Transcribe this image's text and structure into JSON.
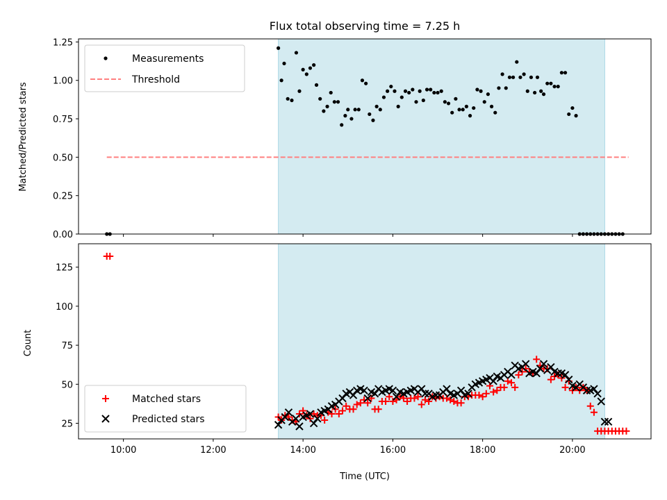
{
  "chart_data": [
    {
      "type": "scatter",
      "title": "Flux total observing time = 7.25 h",
      "xlabel": "",
      "ylabel": "Matched/Predicted stars",
      "xlim": [
        9.0,
        21.75
      ],
      "ylim": [
        0,
        1.27
      ],
      "yticks": [
        0.0,
        0.25,
        0.5,
        0.75,
        1.0,
        1.25
      ],
      "ytick_labels": [
        "0.00",
        "0.25",
        "0.50",
        "0.75",
        "1.00",
        "1.25"
      ],
      "grid": false,
      "legend_position": "upper-left",
      "shaded_region": {
        "x": [
          13.45,
          20.72
        ],
        "color": "#d4ebf1"
      },
      "series": [
        {
          "name": "Measurements",
          "kind": "dot",
          "color": "#000000",
          "x": [
            9.63,
            9.7,
            13.45,
            13.52,
            13.58,
            13.66,
            13.75,
            13.85,
            13.92,
            14.0,
            14.08,
            14.16,
            14.24,
            14.3,
            14.38,
            14.46,
            14.54,
            14.62,
            14.7,
            14.78,
            14.86,
            14.94,
            15.0,
            15.08,
            15.16,
            15.24,
            15.32,
            15.4,
            15.48,
            15.56,
            15.64,
            15.72,
            15.8,
            15.88,
            15.96,
            16.04,
            16.12,
            16.2,
            16.28,
            16.36,
            16.44,
            16.52,
            16.6,
            16.68,
            16.76,
            16.84,
            16.92,
            17.0,
            17.08,
            17.16,
            17.24,
            17.32,
            17.4,
            17.48,
            17.56,
            17.64,
            17.72,
            17.8,
            17.88,
            17.96,
            18.04,
            18.12,
            18.2,
            18.28,
            18.36,
            18.44,
            18.52,
            18.6,
            18.68,
            18.76,
            18.84,
            18.92,
            19.0,
            19.08,
            19.16,
            19.22,
            19.3,
            19.36,
            19.44,
            19.52,
            19.6,
            19.68,
            19.76,
            19.84,
            19.92,
            20.0,
            20.08,
            20.16,
            20.24,
            20.32,
            20.4,
            20.48,
            20.56,
            20.64,
            20.72,
            20.8,
            20.88,
            20.96,
            21.04,
            21.12
          ],
          "y": [
            0.0,
            0.0,
            1.21,
            1.0,
            1.11,
            0.88,
            0.87,
            1.18,
            0.93,
            1.07,
            1.04,
            1.08,
            1.1,
            0.97,
            0.88,
            0.8,
            0.83,
            0.92,
            0.86,
            0.86,
            0.71,
            0.77,
            0.81,
            0.75,
            0.81,
            0.81,
            1.0,
            0.98,
            0.78,
            0.74,
            0.83,
            0.81,
            0.89,
            0.93,
            0.96,
            0.93,
            0.83,
            0.89,
            0.93,
            0.92,
            0.94,
            0.86,
            0.93,
            0.87,
            0.94,
            0.94,
            0.92,
            0.92,
            0.93,
            0.86,
            0.85,
            0.79,
            0.88,
            0.81,
            0.81,
            0.83,
            0.77,
            0.82,
            0.94,
            0.93,
            0.86,
            0.91,
            0.83,
            0.79,
            0.95,
            1.04,
            0.95,
            1.02,
            1.02,
            1.12,
            1.02,
            1.04,
            0.93,
            1.02,
            0.92,
            1.02,
            0.93,
            0.91,
            0.98,
            0.98,
            0.96,
            0.96,
            1.05,
            1.05,
            0.78,
            0.82,
            0.77,
            0.0,
            0.0,
            0.0,
            0.0,
            0.0,
            0.0,
            0.0,
            0.0,
            0.0,
            0.0,
            0.0,
            0.0,
            0.0
          ]
        },
        {
          "name": "Threshold",
          "kind": "dashed-line",
          "color": "#ff7f7f",
          "x": [
            9.63,
            21.25
          ],
          "y": [
            0.5,
            0.5
          ]
        }
      ]
    },
    {
      "type": "scatter",
      "title": "",
      "xlabel": "Time (UTC)",
      "ylabel": "Count",
      "xlim": [
        9.0,
        21.75
      ],
      "ylim": [
        15,
        140
      ],
      "yticks": [
        25,
        50,
        75,
        100,
        125
      ],
      "ytick_labels": [
        "25",
        "50",
        "75",
        "100",
        "125"
      ],
      "xticks": [
        10,
        12,
        14,
        16,
        18,
        20
      ],
      "xtick_labels": [
        "10:00",
        "12:00",
        "14:00",
        "16:00",
        "18:00",
        "20:00"
      ],
      "grid": false,
      "legend_position": "lower-left",
      "shaded_region": {
        "x": [
          13.45,
          20.72
        ],
        "color": "#d4ebf1"
      },
      "series": [
        {
          "name": "Matched stars",
          "marker": "plus",
          "color": "#ff0000",
          "x": [
            9.63,
            9.7,
            13.45,
            13.52,
            13.6,
            13.68,
            13.76,
            13.84,
            13.92,
            14.0,
            14.08,
            14.16,
            14.24,
            14.32,
            14.4,
            14.48,
            14.56,
            14.64,
            14.72,
            14.8,
            14.88,
            14.96,
            15.04,
            15.12,
            15.2,
            15.28,
            15.36,
            15.44,
            15.52,
            15.6,
            15.68,
            15.76,
            15.84,
            15.92,
            16.0,
            16.08,
            16.16,
            16.24,
            16.32,
            16.4,
            16.48,
            16.56,
            16.64,
            16.72,
            16.8,
            16.88,
            16.96,
            17.04,
            17.12,
            17.2,
            17.28,
            17.36,
            17.44,
            17.52,
            17.6,
            17.68,
            17.76,
            17.84,
            17.92,
            18.0,
            18.08,
            18.16,
            18.24,
            18.32,
            18.4,
            18.48,
            18.56,
            18.64,
            18.72,
            18.8,
            18.88,
            18.96,
            19.04,
            19.12,
            19.2,
            19.28,
            19.36,
            19.44,
            19.52,
            19.6,
            19.68,
            19.76,
            19.84,
            19.92,
            20.0,
            20.08,
            20.16,
            20.24,
            20.32,
            20.4,
            20.48,
            20.56,
            20.64,
            20.72,
            20.8,
            20.88,
            20.96,
            21.04,
            21.12,
            21.2
          ],
          "y": [
            132,
            132,
            29,
            27,
            30,
            29,
            27,
            26,
            31,
            33,
            30,
            28,
            31,
            30,
            30,
            27,
            32,
            31,
            34,
            31,
            33,
            36,
            34,
            34,
            37,
            38,
            40,
            38,
            41,
            34,
            34,
            39,
            39,
            42,
            39,
            40,
            42,
            41,
            39,
            41,
            41,
            42,
            37,
            40,
            39,
            42,
            41,
            42,
            41,
            41,
            40,
            39,
            38,
            38,
            42,
            42,
            43,
            43,
            43,
            42,
            44,
            49,
            45,
            46,
            48,
            48,
            52,
            51,
            48,
            56,
            58,
            60,
            58,
            57,
            66,
            62,
            60,
            60,
            53,
            55,
            56,
            54,
            48,
            52,
            46,
            48,
            46,
            48,
            46,
            36,
            32,
            20,
            20,
            20,
            20,
            20,
            20,
            20,
            20,
            20
          ]
        },
        {
          "name": "Predicted stars",
          "marker": "x",
          "color": "#000000",
          "x": [
            13.45,
            13.52,
            13.6,
            13.68,
            13.76,
            13.84,
            13.92,
            14.0,
            14.08,
            14.16,
            14.24,
            14.32,
            14.4,
            14.48,
            14.56,
            14.64,
            14.72,
            14.8,
            14.88,
            14.96,
            15.04,
            15.12,
            15.2,
            15.28,
            15.36,
            15.44,
            15.52,
            15.6,
            15.68,
            15.76,
            15.84,
            15.92,
            16.0,
            16.08,
            16.16,
            16.24,
            16.32,
            16.4,
            16.48,
            16.56,
            16.64,
            16.72,
            16.8,
            16.88,
            16.96,
            17.04,
            17.12,
            17.2,
            17.28,
            17.36,
            17.44,
            17.52,
            17.6,
            17.68,
            17.76,
            17.84,
            17.92,
            18.0,
            18.08,
            18.16,
            18.24,
            18.32,
            18.4,
            18.48,
            18.56,
            18.64,
            18.72,
            18.8,
            18.88,
            18.96,
            19.04,
            19.12,
            19.2,
            19.28,
            19.36,
            19.44,
            19.52,
            19.6,
            19.68,
            19.76,
            19.84,
            19.92,
            20.0,
            20.08,
            20.16,
            20.24,
            20.32,
            20.4,
            20.48,
            20.56,
            20.64,
            20.72,
            20.8
          ],
          "y": [
            24,
            27,
            29,
            32,
            26,
            28,
            23,
            29,
            30,
            31,
            25,
            28,
            32,
            33,
            34,
            36,
            37,
            39,
            41,
            44,
            45,
            43,
            46,
            47,
            46,
            41,
            45,
            44,
            47,
            45,
            46,
            47,
            46,
            42,
            45,
            44,
            45,
            46,
            47,
            45,
            47,
            44,
            44,
            42,
            43,
            43,
            45,
            47,
            44,
            43,
            44,
            46,
            43,
            44,
            48,
            50,
            51,
            52,
            53,
            54,
            52,
            55,
            54,
            56,
            58,
            56,
            62,
            60,
            61,
            63,
            57,
            58,
            57,
            60,
            63,
            59,
            61,
            58,
            57,
            57,
            56,
            53,
            49,
            48,
            50,
            48,
            46,
            46,
            47,
            44,
            39,
            26,
            26
          ]
        }
      ]
    }
  ],
  "legends": {
    "top": [
      "Measurements",
      "Threshold"
    ],
    "bottom": [
      "Matched stars",
      "Predicted stars"
    ]
  }
}
